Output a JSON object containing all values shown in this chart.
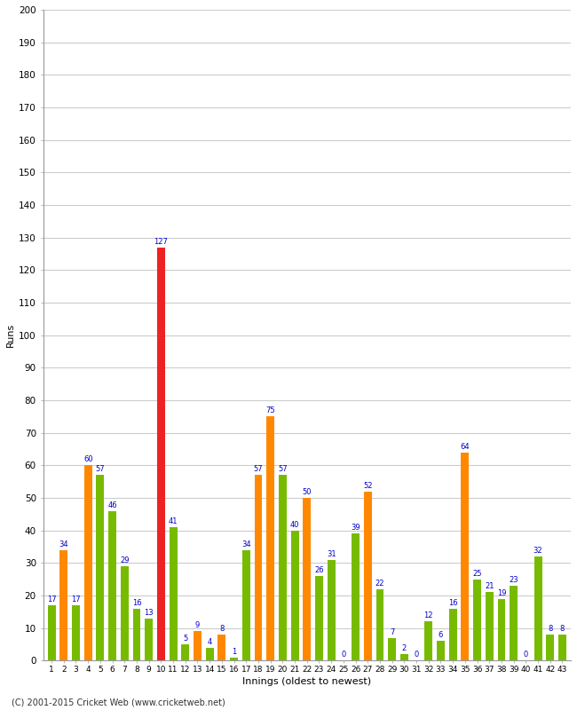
{
  "innings": [
    1,
    2,
    3,
    4,
    5,
    6,
    7,
    8,
    9,
    10,
    11,
    12,
    13,
    14,
    15,
    16,
    17,
    18,
    19,
    20,
    21,
    22,
    23,
    24,
    25,
    26,
    27,
    28,
    29,
    30,
    31,
    32,
    33,
    34,
    35,
    36,
    37,
    38,
    39,
    40,
    41,
    42,
    43
  ],
  "values": [
    17,
    34,
    17,
    60,
    57,
    46,
    29,
    16,
    13,
    127,
    41,
    5,
    9,
    4,
    8,
    1,
    34,
    57,
    75,
    57,
    40,
    50,
    26,
    31,
    0,
    39,
    52,
    22,
    7,
    2,
    0,
    12,
    6,
    16,
    64,
    25,
    21,
    19,
    23,
    0,
    32,
    8,
    8
  ],
  "colors": [
    "#77bb00",
    "#ff8800",
    "#77bb00",
    "#ff8800",
    "#77bb00",
    "#77bb00",
    "#77bb00",
    "#77bb00",
    "#77bb00",
    "#ee2222",
    "#77bb00",
    "#77bb00",
    "#ff8800",
    "#77bb00",
    "#ff8800",
    "#77bb00",
    "#77bb00",
    "#ff8800",
    "#ff8800",
    "#77bb00",
    "#77bb00",
    "#ff8800",
    "#77bb00",
    "#77bb00",
    "#77bb00",
    "#77bb00",
    "#ff8800",
    "#77bb00",
    "#77bb00",
    "#77bb00",
    "#77bb00",
    "#77bb00",
    "#77bb00",
    "#77bb00",
    "#ff8800",
    "#77bb00",
    "#77bb00",
    "#77bb00",
    "#77bb00",
    "#77bb00",
    "#77bb00",
    "#77bb00",
    "#77bb00"
  ],
  "ylabel": "Runs",
  "xlabel": "Innings (oldest to newest)",
  "ylim": [
    0,
    200
  ],
  "yticks": [
    0,
    10,
    20,
    30,
    40,
    50,
    60,
    70,
    80,
    90,
    100,
    110,
    120,
    130,
    140,
    150,
    160,
    170,
    180,
    190,
    200
  ],
  "footer": "(C) 2001-2015 Cricket Web (www.cricketweb.net)",
  "label_color": "#0000cc",
  "background_color": "#ffffff",
  "grid_color": "#cccccc"
}
